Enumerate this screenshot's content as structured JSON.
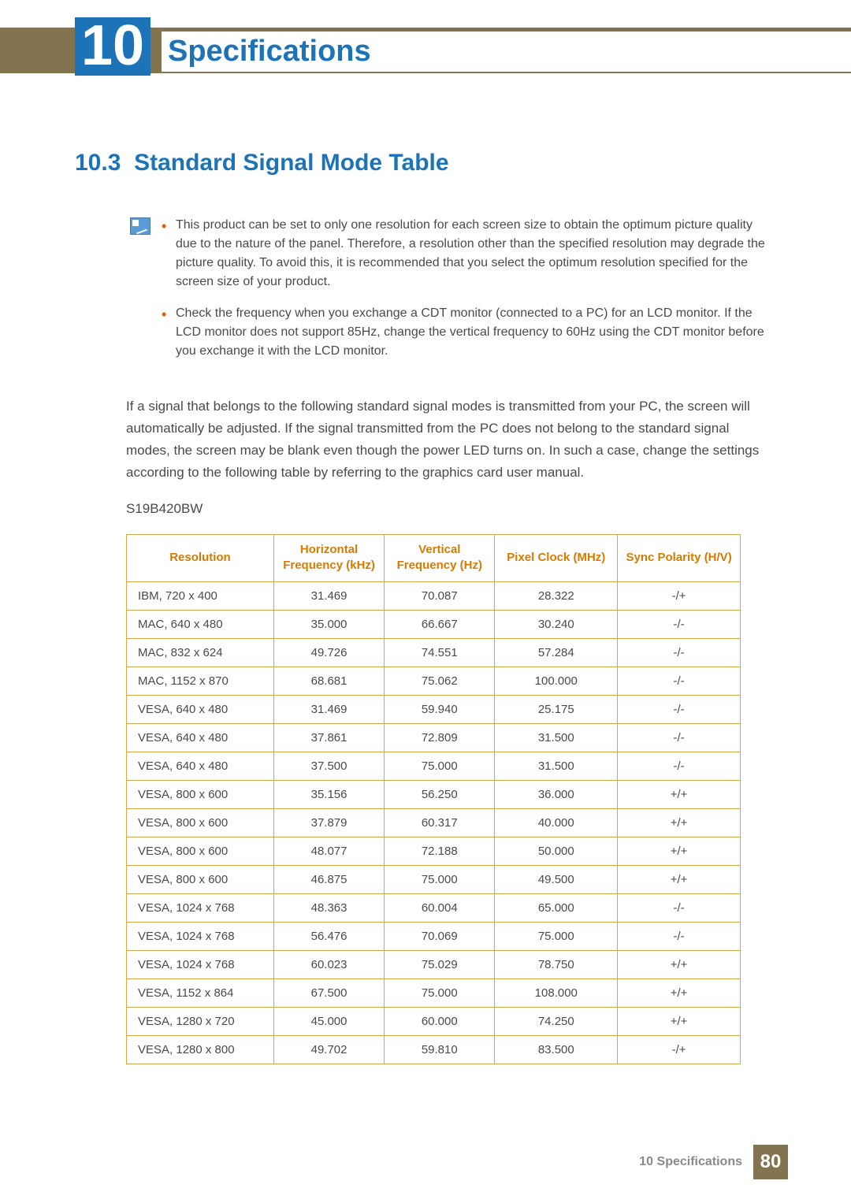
{
  "header": {
    "chapter_number": "10",
    "chapter_title": "Specifications"
  },
  "section": {
    "number": "10.3",
    "title": "Standard Signal Mode Table"
  },
  "notes": [
    "This product can be set to only one resolution for each screen size to obtain the optimum picture quality due to the nature of the panel. Therefore, a resolution other than the specified resolution may degrade the picture quality. To avoid this, it is recommended that you select the optimum resolution specified for the screen size of your product.",
    "Check the frequency when you exchange a CDT monitor (connected to a PC) for an LCD monitor. If the LCD monitor does not support 85Hz, change the vertical frequency to 60Hz using the CDT monitor before you exchange it with the LCD monitor."
  ],
  "body_paragraph": "If a signal that belongs to the following standard signal modes is transmitted from your PC, the screen will automatically be adjusted. If the signal transmitted from the PC does not belong to the standard signal modes, the screen may be blank even though the power LED turns on. In such a case, change the settings according to the following table by referring to the graphics card user manual.",
  "model": "S19B420BW",
  "table": {
    "columns": [
      "Resolution",
      "Horizontal Frequency (kHz)",
      "Vertical Frequency (Hz)",
      "Pixel Clock (MHz)",
      "Sync Polarity (H/V)"
    ],
    "rows": [
      [
        "IBM, 720 x 400",
        "31.469",
        "70.087",
        "28.322",
        "-/+"
      ],
      [
        "MAC, 640 x 480",
        "35.000",
        "66.667",
        "30.240",
        "-/-"
      ],
      [
        "MAC, 832 x 624",
        "49.726",
        "74.551",
        "57.284",
        "-/-"
      ],
      [
        "MAC, 1152 x 870",
        "68.681",
        "75.062",
        "100.000",
        "-/-"
      ],
      [
        "VESA, 640 x 480",
        "31.469",
        "59.940",
        "25.175",
        "-/-"
      ],
      [
        "VESA, 640 x 480",
        "37.861",
        "72.809",
        "31.500",
        "-/-"
      ],
      [
        "VESA, 640 x 480",
        "37.500",
        "75.000",
        "31.500",
        "-/-"
      ],
      [
        "VESA, 800 x 600",
        "35.156",
        "56.250",
        "36.000",
        "+/+"
      ],
      [
        "VESA, 800 x 600",
        "37.879",
        "60.317",
        "40.000",
        "+/+"
      ],
      [
        "VESA, 800 x 600",
        "48.077",
        "72.188",
        "50.000",
        "+/+"
      ],
      [
        "VESA, 800 x 600",
        "46.875",
        "75.000",
        "49.500",
        "+/+"
      ],
      [
        "VESA, 1024 x 768",
        "48.363",
        "60.004",
        "65.000",
        "-/-"
      ],
      [
        "VESA, 1024 x 768",
        "56.476",
        "70.069",
        "75.000",
        "-/-"
      ],
      [
        "VESA, 1024 x 768",
        "60.023",
        "75.029",
        "78.750",
        "+/+"
      ],
      [
        "VESA, 1152 x 864",
        "67.500",
        "75.000",
        "108.000",
        "+/+"
      ],
      [
        "VESA, 1280 x 720",
        "45.000",
        "60.000",
        "74.250",
        "+/+"
      ],
      [
        "VESA, 1280 x 800",
        "49.702",
        "59.810",
        "83.500",
        "-/+"
      ]
    ]
  },
  "footer": {
    "label": "10 Specifications",
    "page": "80"
  },
  "colors": {
    "brand_blue": "#1c73b8",
    "band_brown": "#84734f",
    "table_border": "#d8a54a",
    "header_orange": "#d67a00"
  }
}
